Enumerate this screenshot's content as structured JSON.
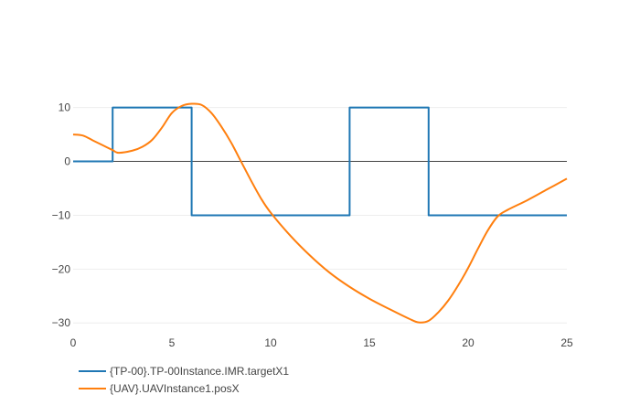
{
  "chart_data": {
    "type": "line",
    "title": "",
    "xlabel": "",
    "ylabel": "",
    "xlim": [
      0,
      25
    ],
    "ylim": [
      -32,
      13
    ],
    "x_ticks": [
      0,
      5,
      10,
      15,
      20,
      25
    ],
    "x_tick_labels": [
      "0",
      "5",
      "10",
      "15",
      "20",
      "25"
    ],
    "y_ticks": [
      10,
      0,
      -10,
      -20,
      -30
    ],
    "y_tick_labels": [
      "10",
      "0",
      "−10",
      "−20",
      "−30"
    ],
    "grid": true,
    "legend_placement": "bottom-left",
    "series": [
      {
        "name": "{TP-00}.TP-00Instance.IMR.targetX1",
        "color": "#1f77b4",
        "shape": "step",
        "x": [
          0,
          2,
          2,
          6,
          6,
          14,
          14,
          18,
          18,
          25
        ],
        "y": [
          0,
          0,
          10,
          10,
          -10,
          -10,
          10,
          10,
          -10,
          -10
        ]
      },
      {
        "name": "{UAV}.UAVInstance1.posX",
        "color": "#ff7f0e",
        "shape": "spline",
        "x": [
          0,
          0.5,
          1,
          1.5,
          2,
          2.3,
          3,
          3.5,
          4,
          4.5,
          5,
          5.5,
          6,
          6.5,
          7,
          7.5,
          8,
          8.5,
          9,
          9.5,
          10,
          11,
          12,
          13,
          14,
          15,
          16,
          17,
          17.5,
          18,
          18.5,
          19,
          19.5,
          20,
          20.5,
          21,
          21.5,
          22,
          23,
          24,
          25
        ],
        "y": [
          5,
          4.8,
          3.9,
          3.0,
          2.1,
          1.6,
          2.0,
          2.7,
          4.0,
          6.3,
          9.0,
          10.3,
          10.7,
          10.5,
          9.0,
          6.5,
          3.5,
          0,
          -3.5,
          -6.8,
          -9.5,
          -13.8,
          -17.5,
          -20.7,
          -23.3,
          -25.5,
          -27.4,
          -29.2,
          -29.9,
          -29.6,
          -28.0,
          -25.8,
          -23.0,
          -19.8,
          -16.2,
          -12.8,
          -10.2,
          -9.0,
          -7.2,
          -5.2,
          -3.2
        ]
      }
    ]
  }
}
